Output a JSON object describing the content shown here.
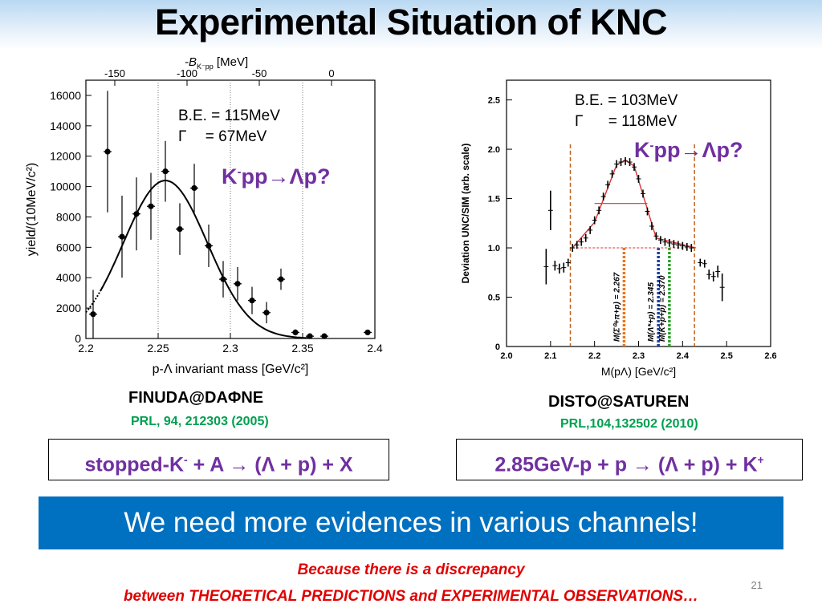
{
  "slide": {
    "title": "Experimental Situation of KNC",
    "page_number": "21"
  },
  "left_panel": {
    "annotations": {
      "be": "B.E. = 115MeV",
      "gamma_symbol": "Γ",
      "gamma_value": "= 67MeV"
    },
    "reaction": {
      "k": "K",
      "sup": "-",
      "rest": "pp→Λp?"
    },
    "source": "FINUDA@DAΦNE",
    "reference": "PRL, 94, 212303 (2005)",
    "process": {
      "a": "stopped-K",
      "sup": "-",
      "b": " + A → (Λ + p) + X"
    }
  },
  "right_panel": {
    "annotations": {
      "be": "B.E. = 103MeV",
      "gamma_symbol": "Γ",
      "gamma_value": "= 118MeV"
    },
    "reaction": {
      "k": "K",
      "sup": "-",
      "rest": "pp→Λp?"
    },
    "source": "DISTO@SATUREN",
    "reference": "PRL,104,132502 (2010)",
    "process": {
      "a": "2.85GeV-p + p → (Λ + p) + K",
      "sup": "+"
    }
  },
  "banner": "We need more evidences in various channels!",
  "footer": {
    "line1": "Because there is a discrepancy",
    "line2": "between THEORETICAL PREDICTIONS and EXPERIMENTAL OBSERVATIONS…"
  },
  "colors": {
    "purple": "#7030a0",
    "green": "#00a050",
    "banner": "#0070c0",
    "red": "#e00000"
  },
  "chart_data": [
    {
      "type": "scatter",
      "xlabel": "p-Λ invariant mass [GeV/c²]",
      "ylabel": "yield/(10MeV/c²)",
      "top_axis_label": "-B",
      "top_axis_sub": "K⁻pp",
      "top_axis_unit": "[MeV]",
      "xlim": [
        2.2,
        2.4
      ],
      "ylim": [
        0,
        17000
      ],
      "x_ticks": [
        "2.2",
        "2.25",
        "2.3",
        "2.35",
        "2.4"
      ],
      "y_ticks": [
        "0",
        "2000",
        "4000",
        "6000",
        "8000",
        "10000",
        "12000",
        "14000",
        "16000"
      ],
      "top_ticks": [
        "-150",
        "-100",
        "-50",
        "0"
      ],
      "top_tick_x": [
        2.22,
        2.27,
        2.32,
        2.37
      ],
      "points": [
        {
          "x": 2.205,
          "y": 1600,
          "err": 1600
        },
        {
          "x": 2.215,
          "y": 12300,
          "err": 4000
        },
        {
          "x": 2.225,
          "y": 6700,
          "err": 2700
        },
        {
          "x": 2.235,
          "y": 8200,
          "err": 2400
        },
        {
          "x": 2.245,
          "y": 8700,
          "err": 2200
        },
        {
          "x": 2.255,
          "y": 11000,
          "err": 2000
        },
        {
          "x": 2.265,
          "y": 7200,
          "err": 1700
        },
        {
          "x": 2.275,
          "y": 9900,
          "err": 1600
        },
        {
          "x": 2.285,
          "y": 6100,
          "err": 1400
        },
        {
          "x": 2.295,
          "y": 3900,
          "err": 1200
        },
        {
          "x": 2.305,
          "y": 3600,
          "err": 1100
        },
        {
          "x": 2.315,
          "y": 2500,
          "err": 900
        },
        {
          "x": 2.325,
          "y": 1700,
          "err": 700
        },
        {
          "x": 2.335,
          "y": 3900,
          "err": 700
        },
        {
          "x": 2.345,
          "y": 400,
          "err": 200
        },
        {
          "x": 2.355,
          "y": 150,
          "err": 100
        },
        {
          "x": 2.365,
          "y": 150,
          "err": 100
        },
        {
          "x": 2.395,
          "y": 400,
          "err": 150
        }
      ],
      "fit": {
        "mean": 2.255,
        "sigma": 0.029,
        "amplitude": 10400
      },
      "dotted_lines_x": [
        2.25,
        2.3,
        2.35
      ]
    },
    {
      "type": "scatter",
      "xlabel": "M(pΛ)    [GeV/c²]",
      "ylabel": "Deviation   UNC/SIM  (arb. scale)",
      "xlim": [
        2.0,
        2.6
      ],
      "ylim": [
        0,
        2.7
      ],
      "x_ticks": [
        "2.0",
        "2.1",
        "2.2",
        "2.3",
        "2.4",
        "2.5",
        "2.6"
      ],
      "y_ticks": [
        "0",
        "0.5",
        "1.0",
        "1.5",
        "2.0",
        "2.5"
      ],
      "points": [
        {
          "x": 2.09,
          "y": 0.81,
          "err": 0.18
        },
        {
          "x": 2.1,
          "y": 1.38,
          "err": 0.2
        },
        {
          "x": 2.11,
          "y": 0.82,
          "err": 0.05
        },
        {
          "x": 2.12,
          "y": 0.79,
          "err": 0.05
        },
        {
          "x": 2.13,
          "y": 0.8,
          "err": 0.05
        },
        {
          "x": 2.14,
          "y": 0.85,
          "err": 0.04
        },
        {
          "x": 2.15,
          "y": 1.0,
          "err": 0.04
        },
        {
          "x": 2.16,
          "y": 1.03,
          "err": 0.04
        },
        {
          "x": 2.17,
          "y": 1.06,
          "err": 0.04
        },
        {
          "x": 2.18,
          "y": 1.1,
          "err": 0.04
        },
        {
          "x": 2.19,
          "y": 1.18,
          "err": 0.04
        },
        {
          "x": 2.2,
          "y": 1.28,
          "err": 0.04
        },
        {
          "x": 2.21,
          "y": 1.38,
          "err": 0.04
        },
        {
          "x": 2.22,
          "y": 1.52,
          "err": 0.04
        },
        {
          "x": 2.23,
          "y": 1.64,
          "err": 0.04
        },
        {
          "x": 2.24,
          "y": 1.75,
          "err": 0.04
        },
        {
          "x": 2.25,
          "y": 1.85,
          "err": 0.04
        },
        {
          "x": 2.26,
          "y": 1.87,
          "err": 0.04
        },
        {
          "x": 2.27,
          "y": 1.88,
          "err": 0.04
        },
        {
          "x": 2.28,
          "y": 1.87,
          "err": 0.04
        },
        {
          "x": 2.29,
          "y": 1.82,
          "err": 0.04
        },
        {
          "x": 2.3,
          "y": 1.7,
          "err": 0.04
        },
        {
          "x": 2.31,
          "y": 1.55,
          "err": 0.04
        },
        {
          "x": 2.32,
          "y": 1.37,
          "err": 0.04
        },
        {
          "x": 2.33,
          "y": 1.22,
          "err": 0.04
        },
        {
          "x": 2.34,
          "y": 1.12,
          "err": 0.04
        },
        {
          "x": 2.35,
          "y": 1.08,
          "err": 0.04
        },
        {
          "x": 2.36,
          "y": 1.06,
          "err": 0.04
        },
        {
          "x": 2.37,
          "y": 1.05,
          "err": 0.04
        },
        {
          "x": 2.38,
          "y": 1.04,
          "err": 0.04
        },
        {
          "x": 2.39,
          "y": 1.03,
          "err": 0.04
        },
        {
          "x": 2.4,
          "y": 1.02,
          "err": 0.04
        },
        {
          "x": 2.41,
          "y": 1.01,
          "err": 0.04
        },
        {
          "x": 2.42,
          "y": 1.0,
          "err": 0.04
        },
        {
          "x": 2.44,
          "y": 0.85,
          "err": 0.04
        },
        {
          "x": 2.45,
          "y": 0.84,
          "err": 0.04
        },
        {
          "x": 2.46,
          "y": 0.73,
          "err": 0.05
        },
        {
          "x": 2.47,
          "y": 0.71,
          "err": 0.05
        },
        {
          "x": 2.48,
          "y": 0.76,
          "err": 0.06
        },
        {
          "x": 2.49,
          "y": 0.6,
          "err": 0.14
        }
      ],
      "fit_curve": [
        [
          2.15,
          1.0
        ],
        [
          2.2,
          1.26
        ],
        [
          2.25,
          1.84
        ],
        [
          2.27,
          1.89
        ],
        [
          2.29,
          1.83
        ],
        [
          2.34,
          1.1
        ],
        [
          2.43,
          1.0
        ]
      ],
      "half_max": {
        "x1": 2.2,
        "x2": 2.32,
        "y": 1.45
      },
      "baseline": {
        "x1": 2.15,
        "x2": 2.43,
        "y": 1.0
      },
      "dashed_lines_x": [
        2.145,
        2.427
      ],
      "threshold_lines": [
        {
          "x": 2.267,
          "label": "M(Σ⁰+π+p) = 2.267",
          "color": "#e87722"
        },
        {
          "x": 2.345,
          "label": "M(Λ*+p) = 2.345",
          "color": "#1f3fa0"
        },
        {
          "x": 2.37,
          "label": "M(K+p+p) = 2.370",
          "color": "#2ca02c"
        }
      ]
    }
  ]
}
